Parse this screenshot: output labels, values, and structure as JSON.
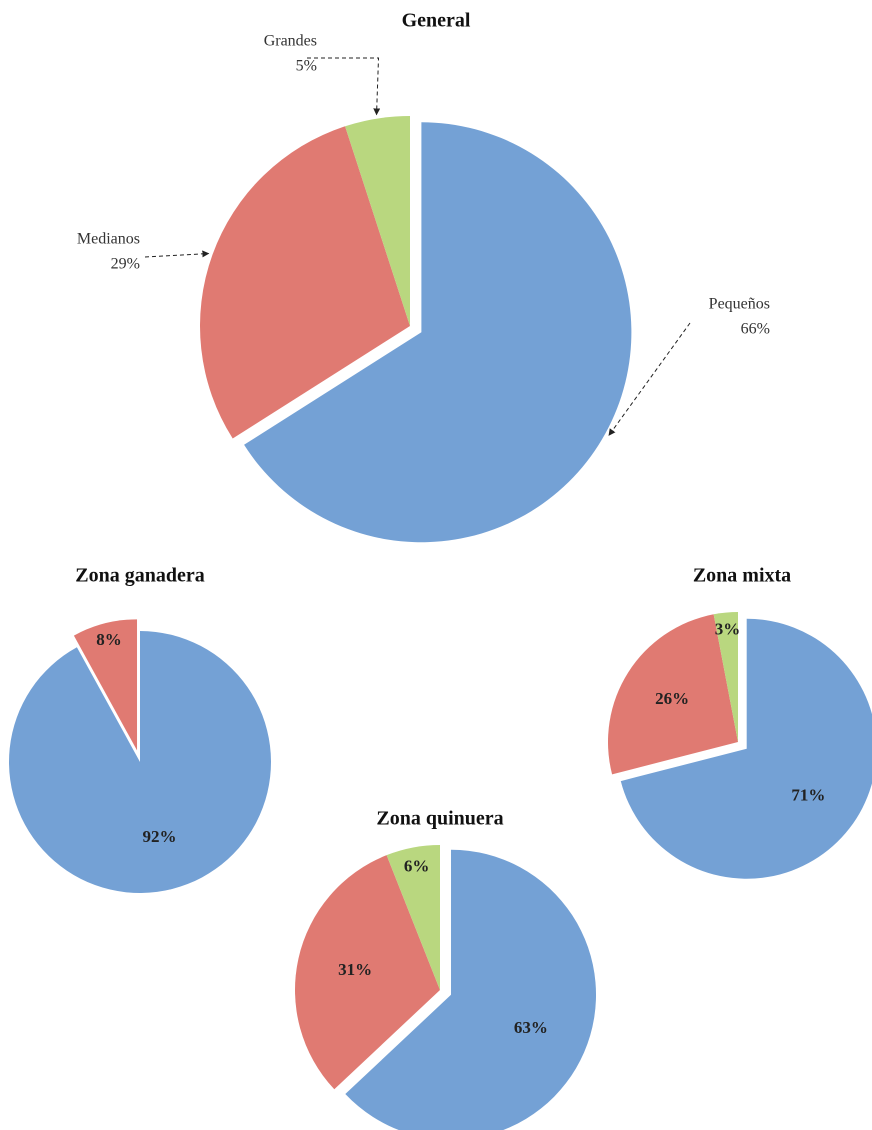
{
  "chart_data": [
    {
      "type": "pie",
      "title": "General",
      "categories": [
        "Pequeños",
        "Medianos",
        "Grandes"
      ],
      "values": [
        66,
        29,
        5
      ],
      "value_labels": [
        "66%",
        "29%",
        "5%"
      ],
      "colors": [
        "#74a1d5",
        "#e07a72",
        "#b9d77f"
      ]
    },
    {
      "type": "pie",
      "title": "Zona ganadera",
      "values": [
        92,
        8
      ],
      "value_labels": [
        "92%",
        "8%"
      ],
      "colors": [
        "#74a1d5",
        "#e07a72"
      ]
    },
    {
      "type": "pie",
      "title": "Zona mixta",
      "values": [
        71,
        26,
        3
      ],
      "value_labels": [
        "71%",
        "26%",
        "3%"
      ],
      "colors": [
        "#74a1d5",
        "#e07a72",
        "#b9d77f"
      ]
    },
    {
      "type": "pie",
      "title": "Zona quinuera",
      "values": [
        63,
        31,
        6
      ],
      "value_labels": [
        "63%",
        "31%",
        "6%"
      ],
      "colors": [
        "#74a1d5",
        "#e07a72",
        "#b9d77f"
      ]
    }
  ]
}
